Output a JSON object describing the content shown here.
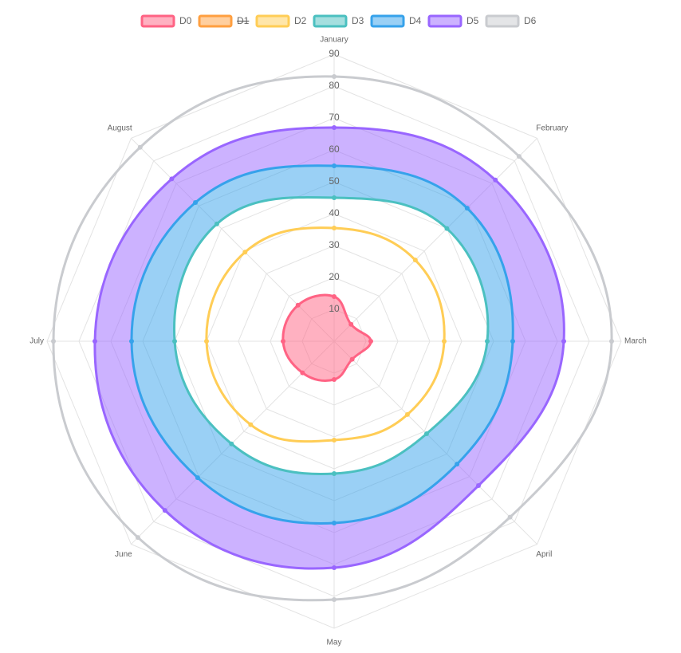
{
  "chart_data": {
    "type": "radar",
    "categories": [
      "January",
      "February",
      "March",
      "April",
      "May",
      "June",
      "July",
      "August"
    ],
    "rlim": [
      0,
      90
    ],
    "rticks": [
      10,
      20,
      30,
      40,
      50,
      60,
      70,
      80,
      90
    ],
    "grid": true,
    "legend": "top",
    "series": [
      {
        "name": "D0",
        "color": "#ff6384",
        "fill": "origin",
        "values": [
          14,
          7.5,
          11.5,
          8,
          12,
          14,
          16,
          16
        ]
      },
      {
        "name": "D1",
        "color": "#ff9f40",
        "hidden": true,
        "fill": false,
        "values": [
          null,
          null,
          null,
          null,
          null,
          null,
          null,
          null
        ]
      },
      {
        "name": "D2",
        "color": "#ffcd56",
        "fill": false,
        "values": [
          35.5,
          36,
          34.5,
          32.5,
          31,
          37,
          40,
          39.5
        ]
      },
      {
        "name": "D3",
        "color": "#4bc0c0",
        "fill": false,
        "values": [
          45,
          50,
          48,
          41,
          41.5,
          45.5,
          50,
          52
        ]
      },
      {
        "name": "D4",
        "color": "#36a2eb",
        "fill": "-1",
        "values": [
          55,
          59,
          56,
          54.5,
          57,
          60.5,
          63.5,
          61.5
        ]
      },
      {
        "name": "D5",
        "color": "#9966ff",
        "fill": "-1",
        "values": [
          67,
          71.5,
          72,
          64,
          71,
          75,
          75,
          72
        ]
      },
      {
        "name": "D6",
        "color": "#c9cbcf",
        "fill": false,
        "values": [
          83,
          82,
          87,
          78,
          81,
          87,
          88,
          86
        ]
      }
    ]
  }
}
